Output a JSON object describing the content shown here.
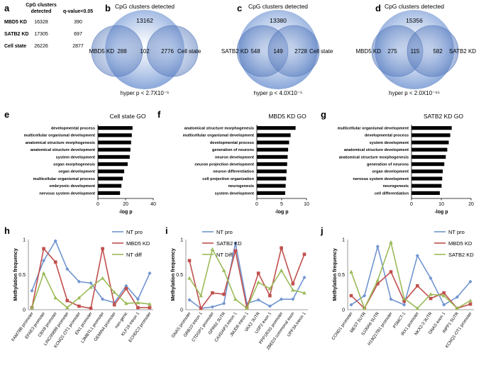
{
  "panels": {
    "a": {
      "letter": "a",
      "headers": [
        "CpG clusters detected",
        "q-value<0.05"
      ],
      "rows": [
        {
          "label": "MBD5 KD",
          "detected": "16328",
          "q": "390"
        },
        {
          "label": "SATB2 KD",
          "detected": "17305",
          "q": "697"
        },
        {
          "label": "Cell state",
          "detected": "26226",
          "q": "2877"
        }
      ]
    },
    "b": {
      "letter": "b",
      "title": "CpG clusters detected",
      "outside": "13162",
      "left_label": "MBD5 KD",
      "right_label": "Cell state",
      "left_only": "288",
      "both": "102",
      "right_only": "2776",
      "pvalue": "hyper p < 2.7X10⁻⁶"
    },
    "c": {
      "letter": "c",
      "title": "CpG clusters detected",
      "outside": "13380",
      "left_label": "SATB2 KD",
      "right_label": "Cell state",
      "left_only": "548",
      "both": "149",
      "right_only": "2728",
      "pvalue": "hyper p < 4.0X10⁻⁵"
    },
    "d": {
      "letter": "d",
      "title": "CpG clusters detected",
      "outside": "15356",
      "left_label": "MBD5 KD",
      "right_label": "SATB2 KD",
      "left_only": "275",
      "both": "115",
      "right_only": "582",
      "pvalue": "hyper p < 2.0X10⁻⁶⁵"
    },
    "e": {
      "letter": "e"
    },
    "f": {
      "letter": "f"
    },
    "g": {
      "letter": "g"
    },
    "h": {
      "letter": "h"
    },
    "i": {
      "letter": "i"
    },
    "j": {
      "letter": "j"
    }
  },
  "colors": {
    "blue": "#7094cf",
    "red": "#c0504d",
    "green": "#9bbb59",
    "bar": "#000000"
  },
  "chart_data": [
    {
      "id": "e",
      "type": "bar",
      "orientation": "horizontal",
      "title": "Cell state GO",
      "xlabel": "-log p",
      "xlim": [
        0,
        40
      ],
      "xticks": [
        0,
        20,
        40
      ],
      "categories": [
        "developmental process",
        "multicellular organismal development",
        "anatomical structure morphogenesis",
        "anatomical structure development",
        "system development",
        "organ morphogenesis",
        "organ development",
        "multicellular organismal process",
        "embryonic development",
        "nervous system development"
      ],
      "values": [
        25,
        24.5,
        24,
        23.5,
        23,
        21.5,
        19,
        18,
        17,
        16
      ]
    },
    {
      "id": "f",
      "type": "bar",
      "orientation": "horizontal",
      "title": "MBD5 KD GO",
      "xlabel": "-log p",
      "xlim": [
        0,
        10
      ],
      "xticks": [
        0,
        5,
        10
      ],
      "categories": [
        "anatomical structure morphogenesis",
        "multicellular organismal development",
        "developmental process",
        "generation of neurons",
        "neuron development",
        "neuron projection development",
        "neuron differentiation",
        "cell projection organization",
        "neurogenesis",
        "system development"
      ],
      "values": [
        7.8,
        6.8,
        6.5,
        6.3,
        6.2,
        6.1,
        6.0,
        5.9,
        5.8,
        5.7
      ]
    },
    {
      "id": "g",
      "type": "bar",
      "orientation": "horizontal",
      "title": "SATB2 KD GO",
      "xlabel": "-log p",
      "xlim": [
        0,
        20
      ],
      "xticks": [
        0,
        10,
        20
      ],
      "categories": [
        "multicellular organismal development",
        "developmental process",
        "system development",
        "anatomical structure development",
        "anatomical structure morphogenesis",
        "generation of neurons",
        "organ development",
        "nervous system development",
        "neurogenesis",
        "cell differentiation"
      ],
      "values": [
        13.5,
        13,
        12.5,
        12,
        11.5,
        11,
        10.5,
        10.3,
        10.1,
        9.5
      ]
    },
    {
      "id": "h",
      "type": "line",
      "ylabel": "Methylation frequency",
      "ylim": [
        0,
        1
      ],
      "yticks": [
        0,
        0.5,
        1
      ],
      "categories": [
        "FAM78B promoter",
        "EFAE3 promoter",
        "CBX8 promoter",
        "LINC00899 promoter",
        "KCNQ1-OT1 promoter",
        "EN1 promoter",
        "L3MBTL1 promoter",
        "GEMIN4 promoter",
        "non-genic",
        "KLF16 intron 1",
        "ECHDC3 promoter"
      ],
      "series": [
        {
          "name": "NT pro",
          "color": "blue",
          "values": [
            0.27,
            0.7,
            0.98,
            0.58,
            0.4,
            0.38,
            0.15,
            0.1,
            0.34,
            0.15,
            0.52
          ]
        },
        {
          "name": "MBD5 KD",
          "color": "red",
          "values": [
            0.03,
            0.87,
            0.68,
            0.13,
            0.05,
            0.02,
            0.87,
            0.07,
            0.3,
            0.03,
            0.03
          ]
        },
        {
          "name": "NT diff",
          "color": "green",
          "values": [
            0.03,
            0.52,
            0.17,
            0.03,
            0.17,
            0.32,
            0.45,
            0.25,
            0.09,
            0.1,
            0.08
          ]
        }
      ]
    },
    {
      "id": "i",
      "type": "line",
      "ylabel": "Methylation frequency",
      "ylim": [
        0,
        1
      ],
      "yticks": [
        0,
        0.5,
        1
      ],
      "categories": [
        "GNAS promoter",
        "GRB10 intron 1",
        "CTDSP1 promoter",
        "GPR62 3UTR",
        "CAXDAP3 intron 1",
        "JMJD6 intron 1",
        "VAX2 3UTR",
        "USP2 exon 1",
        "PPP1R3G promoter",
        "ZBED3 commonal exon",
        "UPF3A intron 1"
      ],
      "series": [
        {
          "name": "NT pro",
          "color": "blue",
          "values": [
            0.14,
            0.02,
            0.04,
            0.09,
            0.95,
            0.09,
            0.14,
            0.05,
            0.15,
            0.15,
            0.46
          ]
        },
        {
          "name": "SATB2 KD",
          "color": "red",
          "values": [
            0.7,
            0.02,
            0.24,
            0.22,
            0.84,
            0.03,
            0.52,
            0.2,
            0.88,
            0.37,
            0.79
          ]
        },
        {
          "name": "NT Diff",
          "color": "green",
          "values": [
            0.45,
            0.2,
            0.86,
            0.56,
            0.15,
            0.02,
            0.39,
            0.3,
            0.56,
            0.28,
            0.24
          ]
        }
      ]
    },
    {
      "id": "j",
      "type": "line",
      "ylabel": "Methylation frequency",
      "ylim": [
        0,
        1
      ],
      "yticks": [
        0,
        0.5,
        1
      ],
      "categories": [
        "CCND1 promoter",
        "MEST 5UTR",
        "S100A6 5UTR",
        "H19Q1TB1 promoter",
        "PSMCT-1",
        "IRX1 promoter",
        "NKX2-3 3UTR",
        "GNAS exon 1",
        "INPP1 5UTR",
        "KCNQ1-OT1 promoter"
      ],
      "series": [
        {
          "name": "NT pro",
          "color": "blue",
          "values": [
            0.07,
            0.2,
            0.9,
            0.15,
            0.07,
            0.77,
            0.45,
            0.07,
            0.18,
            0.4
          ]
        },
        {
          "name": "MBD5 KD",
          "color": "red",
          "values": [
            0.2,
            0.02,
            0.37,
            0.54,
            0.12,
            0.34,
            0.16,
            0.24,
            0.02,
            0.08
          ]
        },
        {
          "name": "SATB2 KD",
          "color": "green",
          "values": [
            0.54,
            0.02,
            0.42,
            0.96,
            0.16,
            0.02,
            0.22,
            0.2,
            0.02,
            0.13
          ]
        }
      ]
    }
  ]
}
